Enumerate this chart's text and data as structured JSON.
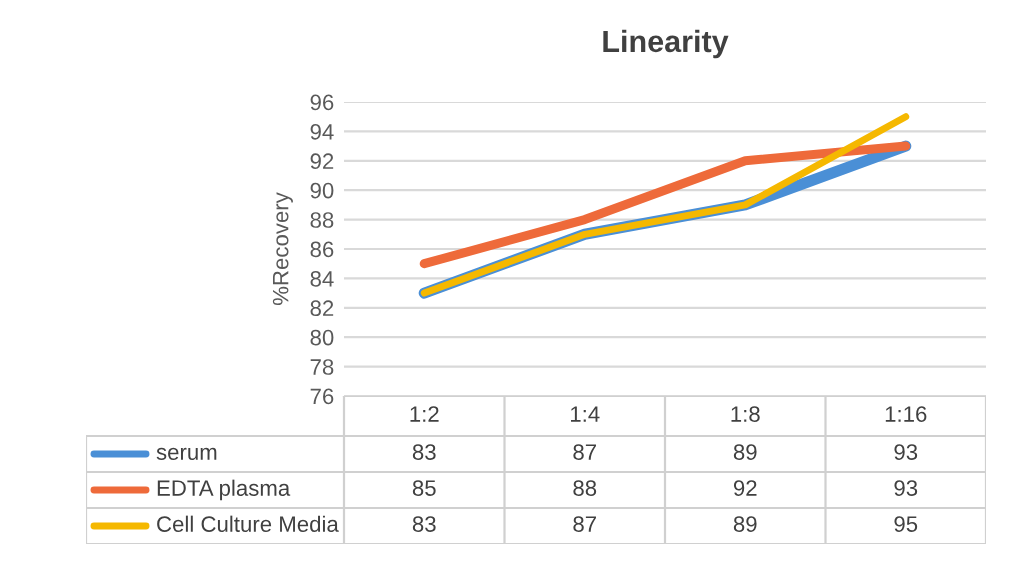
{
  "chart_data": {
    "type": "line",
    "title": "Linearity",
    "ylabel": "%Recovery",
    "categories": [
      "1:2",
      "1:4",
      "1:8",
      "1:16"
    ],
    "series": [
      {
        "name": "serum",
        "color": "#4a8fd6",
        "values": [
          83,
          87,
          89,
          93
        ]
      },
      {
        "name": "EDTA plasma",
        "color": "#ee6a3a",
        "values": [
          85,
          88,
          92,
          93
        ]
      },
      {
        "name": "Cell Culture Media",
        "color": "#f5b800",
        "values": [
          83,
          87,
          89,
          95
        ]
      }
    ],
    "ylim": [
      76,
      96
    ],
    "yticks": [
      76,
      78,
      80,
      82,
      84,
      86,
      88,
      90,
      92,
      94,
      96
    ],
    "grid": "y",
    "legend": "bottom",
    "data_labels": true,
    "marker": "none",
    "line_style": "solid"
  }
}
